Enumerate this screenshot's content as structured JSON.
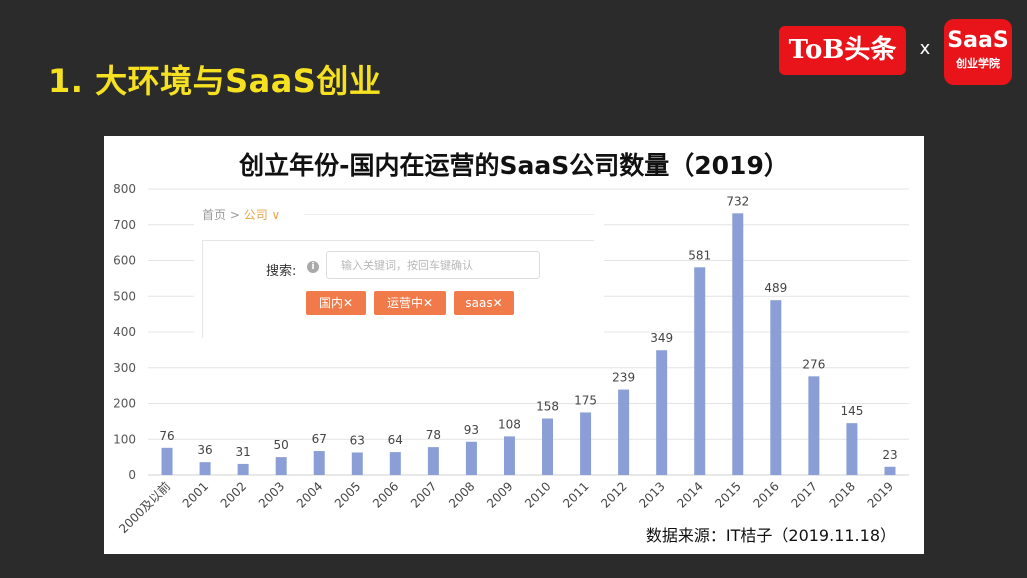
{
  "slide": {
    "title": "1. 大环境与SaaS创业"
  },
  "logos": {
    "tob": "ToB头条",
    "x": "x",
    "saas_big": "SaaS",
    "saas_small": "创业学院"
  },
  "source": "数据来源：IT桔子（2019.11.18）",
  "widget": {
    "breadcrumb_home": "首页 >",
    "breadcrumb_current": "公司 ∨",
    "search_label": "搜索:",
    "search_placeholder": "输入关键词，按回车键确认",
    "tags": [
      "国内✕",
      "运营中✕",
      "saas✕"
    ]
  },
  "colors": {
    "bar": "#8b9fd6",
    "title_yellow": "#f5e120",
    "brand_red": "#e8141a",
    "tag": "#f07a4a"
  },
  "chart_data": {
    "type": "bar",
    "title": "创立年份-国内在运营的SaaS公司数量（2019）",
    "categories": [
      "2000及以前",
      "2001",
      "2002",
      "2003",
      "2004",
      "2005",
      "2006",
      "2007",
      "2008",
      "2009",
      "2010",
      "2011",
      "2012",
      "2013",
      "2014",
      "2015",
      "2016",
      "2017",
      "2018",
      "2019"
    ],
    "values": [
      76,
      36,
      31,
      50,
      67,
      63,
      64,
      78,
      93,
      108,
      158,
      175,
      239,
      349,
      581,
      732,
      489,
      276,
      145,
      23
    ],
    "yticks": [
      0,
      100,
      200,
      300,
      400,
      500,
      600,
      700,
      800
    ],
    "ylim": [
      0,
      800
    ],
    "grid": true,
    "legend": false
  }
}
